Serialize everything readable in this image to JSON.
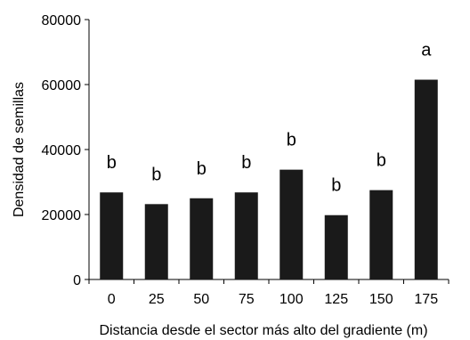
{
  "chart_data": {
    "type": "bar",
    "categories": [
      "0",
      "25",
      "50",
      "75",
      "100",
      "125",
      "150",
      "175"
    ],
    "values": [
      26800,
      23200,
      25000,
      26800,
      33800,
      19800,
      27500,
      61500
    ],
    "significance_labels": [
      "b",
      "b",
      "b",
      "b",
      "b",
      "b",
      "b",
      "a"
    ],
    "title": "",
    "xlabel": "Distancia desde el sector más alto del gradiente (m)",
    "ylabel": "Densidad de semillas",
    "ylim": [
      0,
      80000
    ],
    "yticks": [
      "0",
      "20000",
      "40000",
      "60000",
      "80000"
    ],
    "bar_color": "#1a1a1a",
    "grid": false,
    "legend": "none"
  }
}
